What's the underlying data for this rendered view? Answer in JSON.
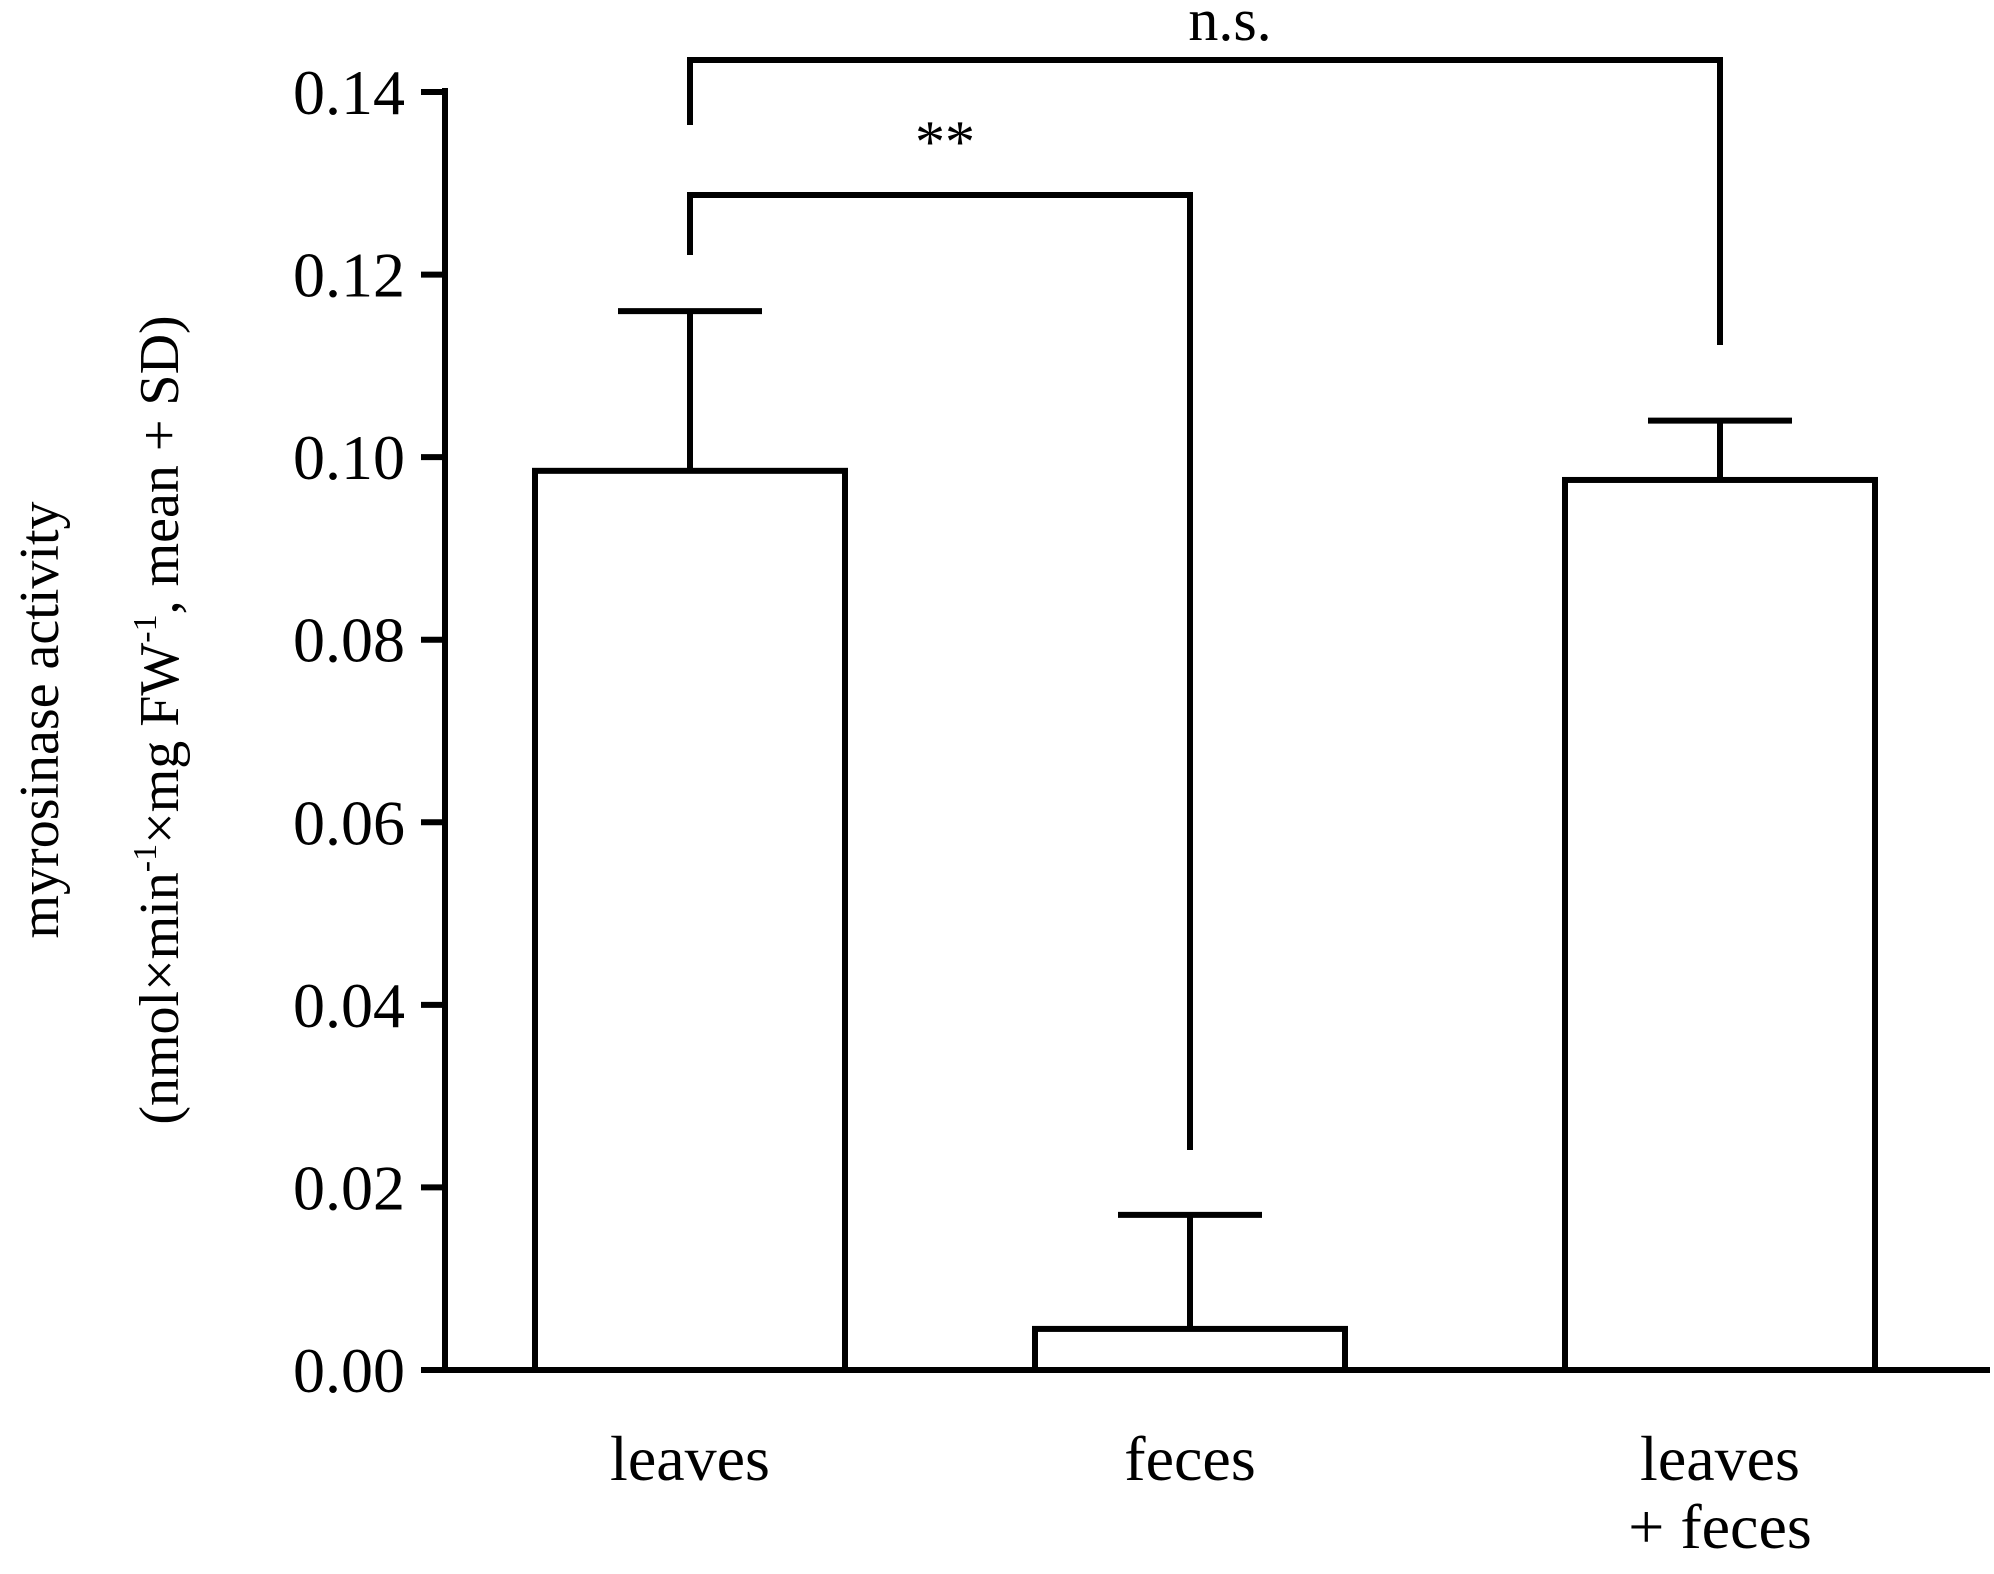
{
  "chart_data": {
    "type": "bar",
    "categories": [
      [
        "leaves"
      ],
      [
        "feces"
      ],
      [
        "leaves",
        "+ feces"
      ]
    ],
    "values": [
      0.0985,
      0.0045,
      0.0975
    ],
    "sd": [
      0.0175,
      0.0125,
      0.0065
    ],
    "ylabel_line1": "myrosinase activity",
    "ylabel_line2": {
      "parts": [
        "(nmol×min",
        "-1",
        "×mg FW",
        "-1",
        ", mean + SD)"
      ]
    },
    "ylim": [
      0,
      0.14
    ],
    "yticks": [
      "0.00",
      "0.02",
      "0.04",
      "0.06",
      "0.08",
      "0.10",
      "0.12",
      "0.14"
    ],
    "significance": [
      {
        "from": 0,
        "to": 2,
        "label": "n.s."
      },
      {
        "from": 0,
        "to": 1,
        "label": "**"
      }
    ],
    "grid": false,
    "legend": "none",
    "colors": {
      "bar_fill": "#ffffff",
      "stroke": "#000000"
    }
  }
}
